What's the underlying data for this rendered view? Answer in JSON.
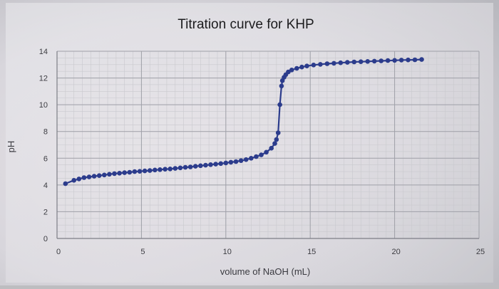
{
  "chart_data": {
    "type": "line",
    "title": "Titration curve for KHP",
    "xlabel": "volume of NaOH (mL)",
    "ylabel": "pH",
    "xlim": [
      0,
      25
    ],
    "ylim": [
      0,
      14
    ],
    "xticks": [
      0,
      5,
      10,
      15,
      20,
      25
    ],
    "yticks": [
      0,
      2,
      4,
      6,
      8,
      10,
      12,
      14
    ],
    "grid": true,
    "legend": "none",
    "series": [
      {
        "color": "#2c3c8c",
        "marker": "circle",
        "x": [
          0.5,
          1.0,
          1.3,
          1.6,
          1.9,
          2.2,
          2.5,
          2.8,
          3.1,
          3.4,
          3.7,
          4.0,
          4.3,
          4.6,
          4.9,
          5.2,
          5.5,
          5.8,
          6.1,
          6.4,
          6.7,
          7.0,
          7.3,
          7.6,
          7.9,
          8.2,
          8.5,
          8.8,
          9.1,
          9.4,
          9.7,
          10.0,
          10.3,
          10.6,
          10.9,
          11.2,
          11.5,
          11.8,
          12.1,
          12.4,
          12.7,
          12.9,
          13.0,
          13.1,
          13.2,
          13.3,
          13.35,
          13.45,
          13.55,
          13.7,
          13.9,
          14.2,
          14.5,
          14.8,
          15.2,
          15.6,
          16.0,
          16.4,
          16.8,
          17.2,
          17.6,
          18.0,
          18.4,
          18.8,
          19.2,
          19.6,
          20.0,
          20.4,
          20.8,
          21.2,
          21.6
        ],
        "y": [
          4.1,
          4.35,
          4.45,
          4.55,
          4.6,
          4.65,
          4.7,
          4.75,
          4.8,
          4.85,
          4.88,
          4.92,
          4.95,
          5.0,
          5.02,
          5.05,
          5.08,
          5.12,
          5.15,
          5.18,
          5.2,
          5.24,
          5.28,
          5.32,
          5.35,
          5.4,
          5.44,
          5.48,
          5.52,
          5.56,
          5.6,
          5.65,
          5.7,
          5.75,
          5.82,
          5.9,
          6.0,
          6.12,
          6.25,
          6.45,
          6.75,
          7.1,
          7.4,
          7.9,
          10.0,
          11.4,
          11.8,
          12.05,
          12.25,
          12.45,
          12.6,
          12.72,
          12.82,
          12.9,
          12.97,
          13.02,
          13.07,
          13.1,
          13.14,
          13.17,
          13.2,
          13.22,
          13.24,
          13.26,
          13.28,
          13.3,
          13.32,
          13.34,
          13.35,
          13.36,
          13.38
        ]
      }
    ]
  }
}
